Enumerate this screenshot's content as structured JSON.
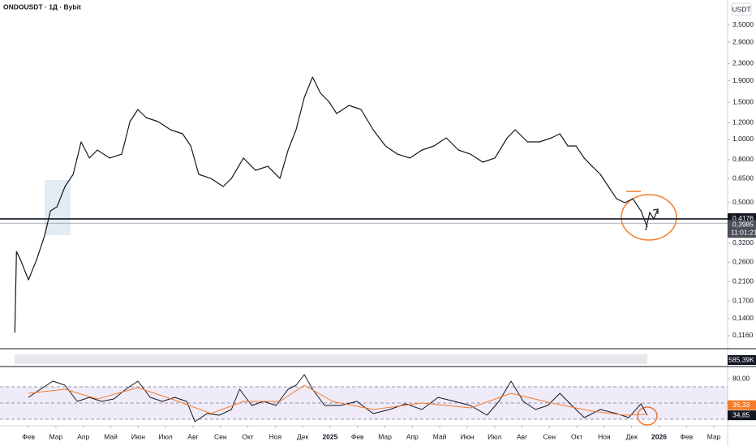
{
  "chart_data": {
    "type": "line",
    "title": "ONDOUSDT · 1Д · Bybit",
    "currency": "USDT",
    "log_scale": true,
    "grid": false,
    "color": "#131722",
    "x": [
      0.5,
      0.56,
      0.7,
      1.0,
      1.3,
      1.59,
      1.8,
      2.04,
      2.33,
      2.63,
      2.92,
      3.22,
      3.51,
      3.96,
      4.4,
      4.7,
      4.99,
      5.29,
      5.73,
      6.18,
      6.62,
      6.92,
      7.21,
      7.66,
      8.1,
      8.4,
      8.84,
      9.28,
      9.73,
      10.17,
      10.47,
      10.76,
      11.06,
      11.36,
      11.65,
      11.95,
      12.24,
      12.69,
      13.13,
      13.57,
      14.02,
      14.46,
      14.91,
      15.35,
      15.79,
      16.24,
      16.68,
      17.12,
      17.57,
      18.01,
      18.46,
      18.75,
      19.2,
      19.64,
      20.08,
      20.38,
      20.67,
      20.97,
      21.27,
      21.56,
      21.86,
      22.15,
      22.45,
      22.75,
      23.04,
      23.34,
      23.57
    ],
    "values": [
      0.12,
      0.292,
      0.268,
      0.214,
      0.268,
      0.349,
      0.456,
      0.477,
      0.596,
      0.681,
      0.972,
      0.814,
      0.889,
      0.814,
      0.85,
      1.214,
      1.387,
      1.269,
      1.214,
      1.111,
      1.062,
      0.93,
      0.681,
      0.651,
      0.596,
      0.651,
      0.814,
      0.712,
      0.744,
      0.651,
      0.889,
      1.111,
      1.586,
      1.98,
      1.657,
      1.516,
      1.327,
      1.451,
      1.387,
      1.111,
      0.93,
      0.85,
      0.814,
      0.889,
      0.93,
      1.016,
      0.889,
      0.85,
      0.778,
      0.814,
      1.016,
      1.111,
      0.972,
      0.972,
      1.016,
      1.062,
      0.93,
      0.93,
      0.814,
      0.744,
      0.681,
      0.596,
      0.521,
      0.499,
      0.521,
      0.456,
      0.382
    ],
    "xlim": [
      -0.04,
      26.5
    ],
    "xticks": [
      {
        "value": 1,
        "label": "Фев"
      },
      {
        "value": 2,
        "label": "Мар"
      },
      {
        "value": 3,
        "label": "Апр"
      },
      {
        "value": 4,
        "label": "Май"
      },
      {
        "value": 5,
        "label": "Июн"
      },
      {
        "value": 6,
        "label": "Июл"
      },
      {
        "value": 7,
        "label": "Авг"
      },
      {
        "value": 8,
        "label": "Сен"
      },
      {
        "value": 9,
        "label": "Окт"
      },
      {
        "value": 10,
        "label": "Ноя"
      },
      {
        "value": 11,
        "label": "Дек"
      },
      {
        "value": 12,
        "label": "2025"
      },
      {
        "value": 13,
        "label": "Фев"
      },
      {
        "value": 14,
        "label": "Мар"
      },
      {
        "value": 15,
        "label": "Апр"
      },
      {
        "value": 16,
        "label": "Май"
      },
      {
        "value": 17,
        "label": "Июн"
      },
      {
        "value": 18,
        "label": "Июл"
      },
      {
        "value": 19,
        "label": "Авг"
      },
      {
        "value": 20,
        "label": "Сен"
      },
      {
        "value": 21,
        "label": "Окт"
      },
      {
        "value": 22,
        "label": "Ноя"
      },
      {
        "value": 23,
        "label": "Дек"
      },
      {
        "value": 24,
        "label": "2026"
      },
      {
        "value": 25,
        "label": "Фев"
      },
      {
        "value": 26,
        "label": "Мар"
      }
    ],
    "ylim": [
      0.1006,
      4.61
    ],
    "yticks": [
      {
        "value": 3.5,
        "label": "3,5000"
      },
      {
        "value": 2.9,
        "label": "2,9000"
      },
      {
        "value": 2.3,
        "label": "2,3000"
      },
      {
        "value": 1.9,
        "label": "1,9000"
      },
      {
        "value": 1.5,
        "label": "1,5000"
      },
      {
        "value": 1.2,
        "label": "1,2000"
      },
      {
        "value": 1.0,
        "label": "1,0000"
      },
      {
        "value": 0.8,
        "label": "0,8000"
      },
      {
        "value": 0.65,
        "label": "0,6500"
      },
      {
        "value": 0.5,
        "label": "0,5000"
      },
      {
        "value": 0.32,
        "label": "0,3200"
      },
      {
        "value": 0.26,
        "label": "0,2600"
      },
      {
        "value": 0.21,
        "label": "0,2100"
      },
      {
        "value": 0.17,
        "label": "0,1700"
      },
      {
        "value": 0.14,
        "label": "0,1400"
      },
      {
        "value": 0.116,
        "label": "0,1160"
      }
    ],
    "price_line": {
      "value": 0.4176,
      "label": "0,4176"
    },
    "last_price": {
      "value": 0.3985,
      "label": "0,3985"
    },
    "countdown": "11:01:21",
    "volume_label": "585,39K",
    "rsi": {
      "color": "#131722",
      "ma_color": "#f57c2c",
      "ylim": [
        22,
        95
      ],
      "yticks": [
        {
          "value": 80,
          "label": "80,00"
        }
      ],
      "levels": [
        70,
        50,
        30
      ],
      "x": [
        1.0,
        1.44,
        1.89,
        2.33,
        2.78,
        3.22,
        3.66,
        4.11,
        4.55,
        4.99,
        5.44,
        5.88,
        6.33,
        6.77,
        7.07,
        7.51,
        7.96,
        8.4,
        8.7,
        9.14,
        9.58,
        10.03,
        10.47,
        10.76,
        11.06,
        11.36,
        11.8,
        12.39,
        12.98,
        13.57,
        14.17,
        14.76,
        15.35,
        15.94,
        16.54,
        17.12,
        17.72,
        18.16,
        18.6,
        19.05,
        19.49,
        19.94,
        20.38,
        20.82,
        21.27,
        21.86,
        22.45,
        22.89,
        23.34,
        23.57
      ],
      "values": [
        57,
        67,
        77,
        72,
        52,
        57,
        52,
        55,
        67,
        77,
        57,
        52,
        57,
        52,
        27,
        37,
        35,
        42,
        67,
        47,
        52,
        47,
        67,
        72,
        85,
        67,
        47,
        47,
        52,
        37,
        42,
        49,
        42,
        57,
        52,
        47,
        35,
        52,
        77,
        52,
        42,
        47,
        62,
        47,
        32,
        42,
        37,
        32,
        49,
        34.85
      ],
      "ma_x": [
        1.0,
        2.33,
        3.51,
        4.99,
        6.47,
        7.66,
        8.84,
        10.17,
        11.06,
        12.09,
        13.57,
        15.35,
        17.12,
        18.6,
        20.08,
        21.56,
        22.75,
        23.57
      ],
      "ma_values": [
        62,
        67,
        55,
        69,
        52,
        37,
        52,
        52,
        72,
        52,
        42,
        50,
        44,
        62,
        50,
        40,
        35,
        36.33
      ],
      "last": {
        "value": 34.85,
        "label": "34,85"
      },
      "ma_last": {
        "value": 36.33,
        "label": "36,33"
      }
    }
  }
}
